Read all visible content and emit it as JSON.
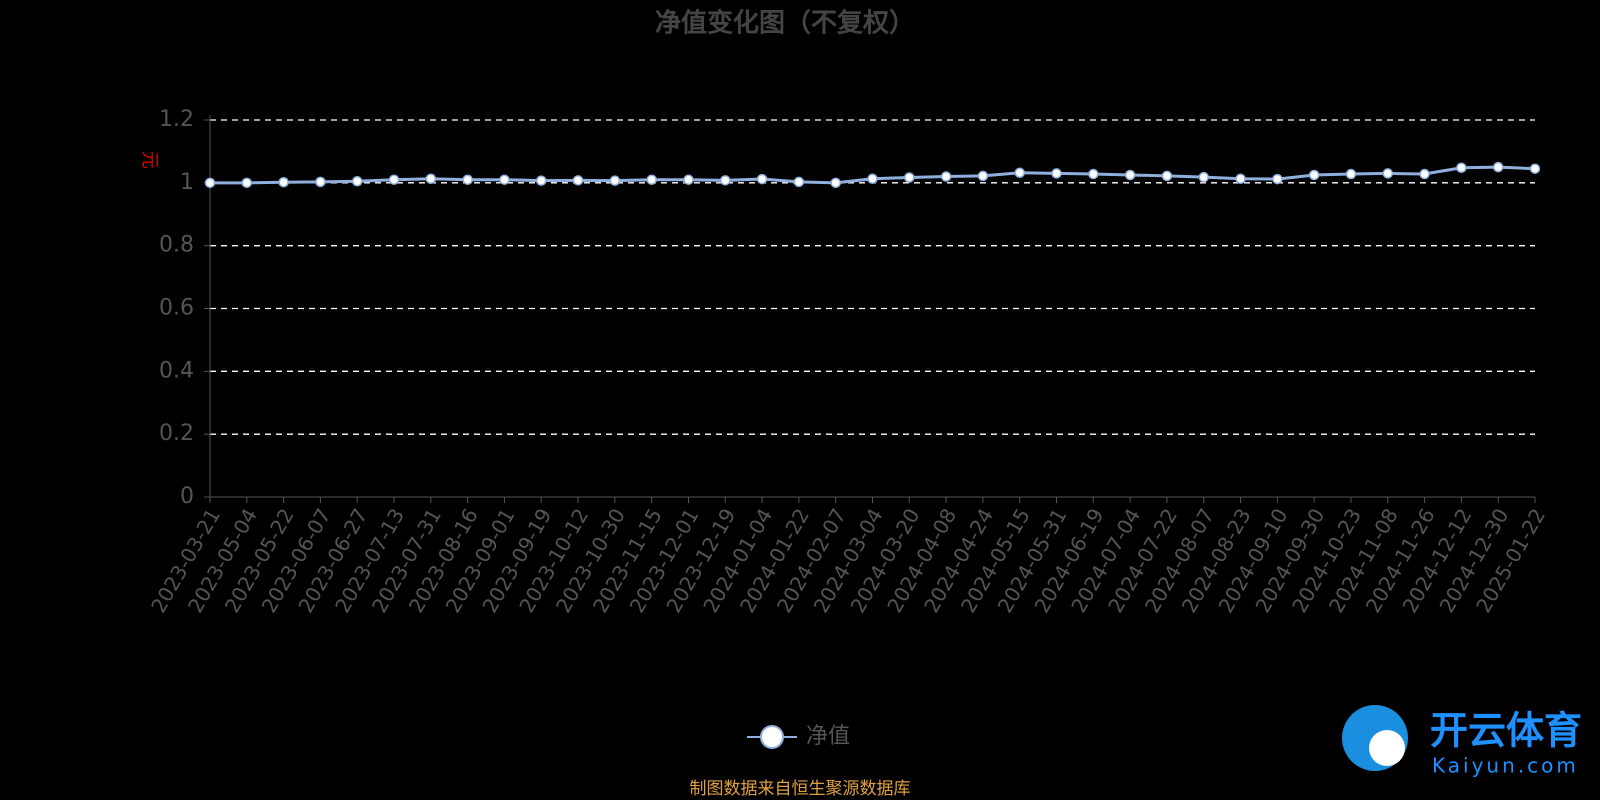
{
  "chart_data": {
    "type": "line",
    "title": "净值变化图（不复权）",
    "y_axis_label": "元",
    "categories": [
      "2023-03-21",
      "2023-05-04",
      "2023-05-22",
      "2023-06-07",
      "2023-06-27",
      "2023-07-13",
      "2023-07-31",
      "2023-08-16",
      "2023-09-01",
      "2023-09-19",
      "2023-10-12",
      "2023-10-30",
      "2023-11-15",
      "2023-12-01",
      "2023-12-19",
      "2024-01-04",
      "2024-01-22",
      "2024-02-07",
      "2024-03-04",
      "2024-03-20",
      "2024-04-08",
      "2024-04-24",
      "2024-05-15",
      "2024-05-31",
      "2024-06-19",
      "2024-07-04",
      "2024-07-22",
      "2024-08-07",
      "2024-08-23",
      "2024-09-10",
      "2024-09-30",
      "2024-10-23",
      "2024-11-08",
      "2024-11-26",
      "2024-12-12",
      "2024-12-30",
      "2025-01-22"
    ],
    "series": [
      {
        "name": "净值",
        "color": "#8fb0dd",
        "values": [
          1.0,
          1.0,
          1.002,
          1.003,
          1.005,
          1.01,
          1.013,
          1.01,
          1.01,
          1.007,
          1.008,
          1.007,
          1.01,
          1.01,
          1.008,
          1.012,
          1.003,
          1.0,
          1.013,
          1.017,
          1.02,
          1.022,
          1.032,
          1.03,
          1.028,
          1.025,
          1.022,
          1.018,
          1.013,
          1.012,
          1.025,
          1.028,
          1.03,
          1.028,
          1.048,
          1.05,
          1.045
        ]
      }
    ],
    "ylim": [
      0,
      1.2
    ],
    "yticks": [
      0,
      0.2,
      0.4,
      0.6,
      0.8,
      1,
      1.2
    ],
    "grid": true,
    "source": "制图数据来自恒生聚源数据库"
  },
  "watermark": {
    "brand": "开云体育",
    "url": "Kaiyun.com"
  }
}
